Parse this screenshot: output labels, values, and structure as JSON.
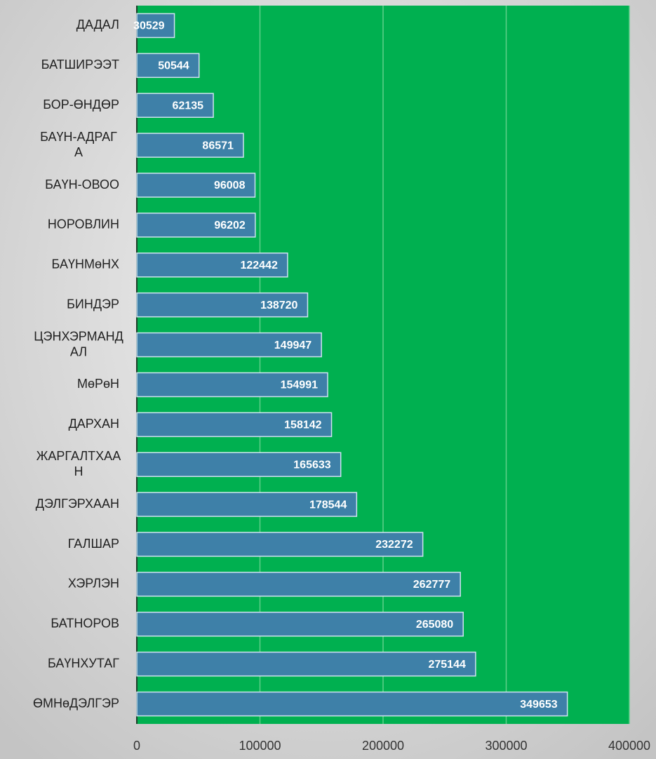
{
  "chart_data": {
    "type": "barh",
    "categories": [
      "ДАДАЛ",
      "БАТШИРЭЭТ",
      "БОР-ӨНДӨР",
      "БАҮН-АДРАГА",
      "БАҮН-ОВОО",
      "НОРОВЛИН",
      "БАҮНМөНХ",
      "БИНДЭР",
      "ЦЭНХЭРМАНДАЛ",
      "МөРөН",
      "ДАРХАН",
      "ЖАРГАЛТХААН",
      "ДЭЛГЭРХААН",
      "ГАЛШАР",
      "ХЭРЛЭН",
      "БАТНОРОВ",
      "БАҮНХУТАГ",
      "ӨМНөДЭЛГЭР"
    ],
    "values": [
      30529,
      50544,
      62135,
      86571,
      96008,
      96202,
      122442,
      138720,
      149947,
      154991,
      158142,
      165633,
      178544,
      232272,
      262777,
      265080,
      275144,
      349653
    ],
    "color": "#3e80a8",
    "xlim": [
      0,
      400000
    ],
    "xticks": [
      0,
      100000,
      200000,
      300000,
      400000
    ],
    "grid": true
  }
}
